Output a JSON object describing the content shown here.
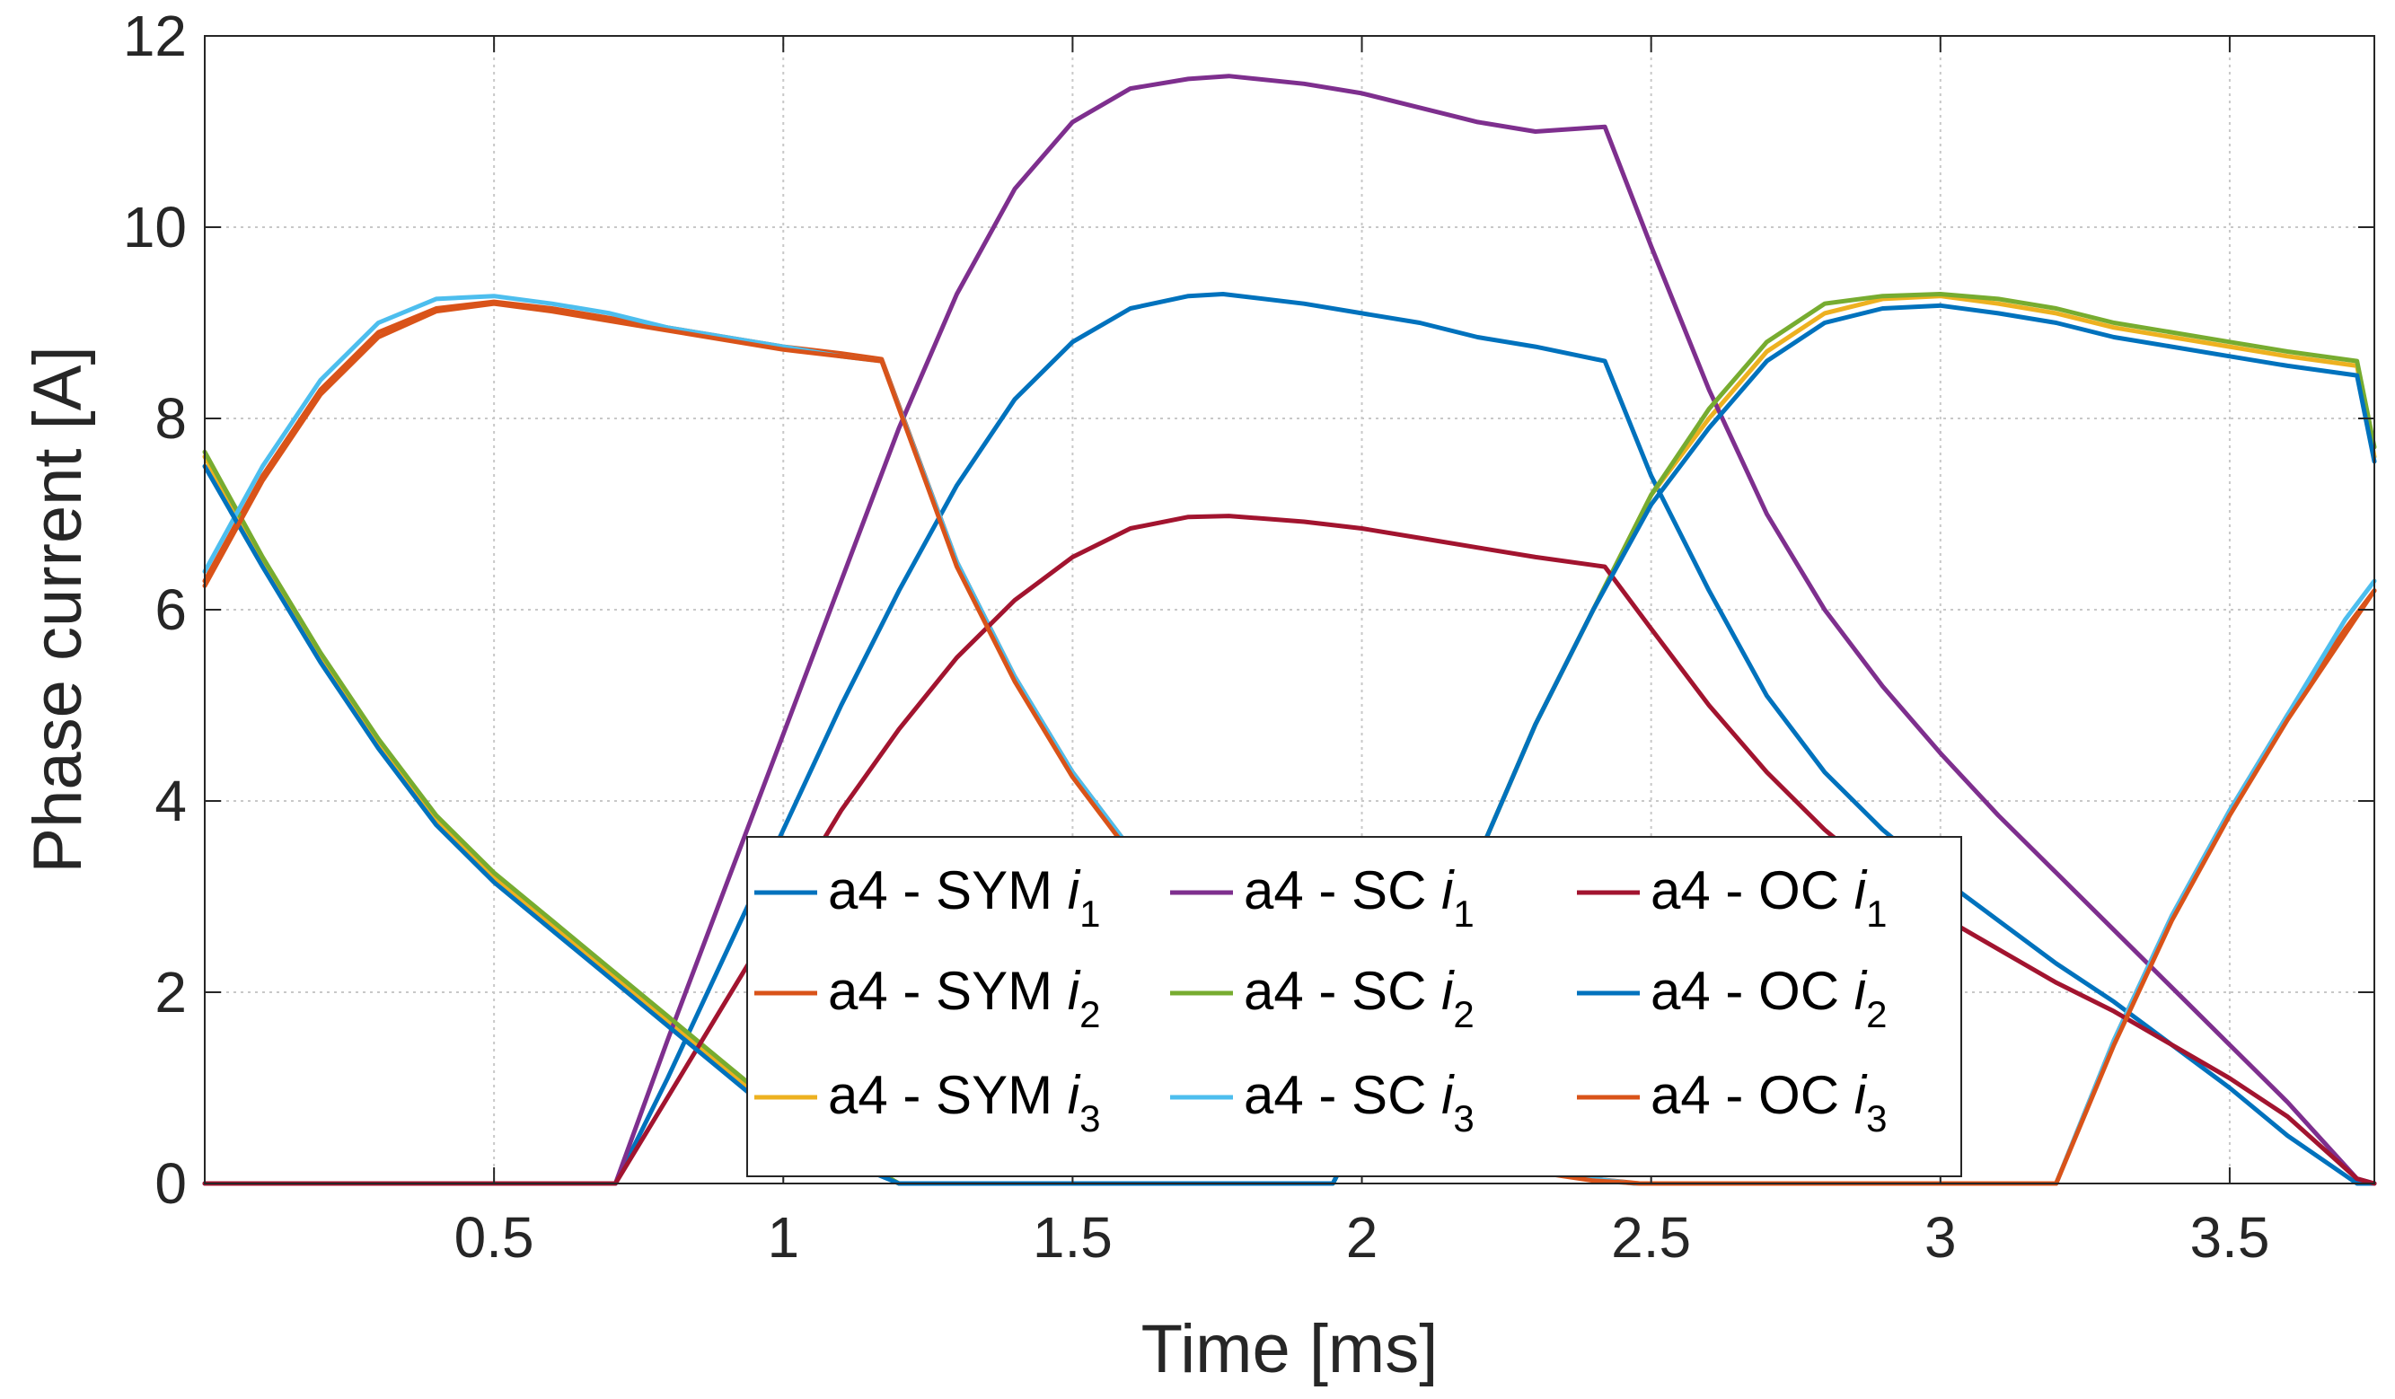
{
  "chart_data": {
    "type": "line",
    "title": "",
    "xlabel": "Time  [ms]",
    "ylabel": "Phase current [A]",
    "xlim": [
      0,
      3.75
    ],
    "ylim": [
      0,
      12
    ],
    "x_ticks": [
      0.5,
      1,
      1.5,
      2,
      2.5,
      3,
      3.5
    ],
    "x_tick_labels": [
      "0.5",
      "1",
      "1.5",
      "2",
      "2.5",
      "3",
      "3.5"
    ],
    "y_ticks": [
      0,
      2,
      4,
      6,
      8,
      10,
      12
    ],
    "y_tick_labels": [
      "0",
      "2",
      "4",
      "6",
      "8",
      "10",
      "12"
    ],
    "grid": true,
    "legend_position": "bottom-center",
    "legend_columns": 3,
    "series": [
      {
        "name": "a4 - SYM i1",
        "label_main": "a4 - SYM ",
        "label_var": "i",
        "label_sub": "1",
        "color": "#0072BD",
        "x": [
          0,
          0.71,
          0.8,
          0.9,
          1.0,
          1.1,
          1.2,
          1.3,
          1.4,
          1.5,
          1.6,
          1.7,
          1.76,
          1.9,
          2.0,
          2.1,
          2.2,
          2.3,
          2.42,
          2.5,
          2.6,
          2.7,
          2.8,
          2.9,
          3.0,
          3.1,
          3.2,
          3.3,
          3.4,
          3.5,
          3.6,
          3.72,
          3.75
        ],
        "y": [
          0,
          0,
          1.1,
          2.4,
          3.7,
          5.0,
          6.2,
          7.3,
          8.2,
          8.8,
          9.15,
          9.28,
          9.3,
          9.2,
          9.1,
          9.0,
          8.85,
          8.75,
          8.6,
          7.4,
          6.2,
          5.1,
          4.3,
          3.7,
          3.2,
          2.75,
          2.3,
          1.9,
          1.45,
          1.0,
          0.5,
          0,
          0
        ]
      },
      {
        "name": "a4 - SYM i2",
        "label_main": "a4 - SYM ",
        "label_var": "i",
        "label_sub": "2",
        "color": "#D95319",
        "x": [
          0,
          0.1,
          0.2,
          0.3,
          0.4,
          0.5,
          0.6,
          0.7,
          0.8,
          0.9,
          1.0,
          1.1,
          1.17,
          1.3,
          1.4,
          1.5,
          1.6,
          1.7,
          1.8,
          1.9,
          2.0,
          2.1,
          2.2,
          2.3,
          2.4,
          2.48,
          3.2,
          3.3,
          3.4,
          3.5,
          3.6,
          3.7,
          3.75
        ],
        "y": [
          6.3,
          7.4,
          8.3,
          8.9,
          9.15,
          9.22,
          9.15,
          9.05,
          8.95,
          8.85,
          8.75,
          8.68,
          8.62,
          6.5,
          5.3,
          4.3,
          3.5,
          2.8,
          2.2,
          1.6,
          1.1,
          0.7,
          0.4,
          0.15,
          0.05,
          0,
          0,
          1.5,
          2.8,
          3.9,
          4.9,
          5.8,
          6.2
        ]
      },
      {
        "name": "a4 - SYM i3",
        "label_main": "a4 - SYM ",
        "label_var": "i",
        "label_sub": "3",
        "color": "#EDB120",
        "x": [
          0,
          0.1,
          0.2,
          0.3,
          0.4,
          0.5,
          0.6,
          0.7,
          0.8,
          0.9,
          1.0,
          1.1,
          1.2,
          1.95,
          2.0,
          2.1,
          2.2,
          2.3,
          2.4,
          2.5,
          2.6,
          2.7,
          2.8,
          2.9,
          3.0,
          3.1,
          3.2,
          3.3,
          3.4,
          3.5,
          3.6,
          3.72,
          3.75
        ],
        "y": [
          7.6,
          6.5,
          5.5,
          4.6,
          3.8,
          3.2,
          2.7,
          2.2,
          1.7,
          1.2,
          0.7,
          0.3,
          0,
          0,
          0.6,
          2.0,
          3.4,
          4.8,
          6.0,
          7.2,
          8.0,
          8.7,
          9.1,
          9.25,
          9.28,
          9.2,
          9.1,
          8.95,
          8.85,
          8.75,
          8.65,
          8.55,
          7.6
        ]
      },
      {
        "name": "a4 - SC i1",
        "label_main": "a4 - SC ",
        "label_var": "i",
        "label_sub": "1",
        "color": "#7E2F8E",
        "x": [
          0,
          0.71,
          0.8,
          0.9,
          1.0,
          1.1,
          1.2,
          1.3,
          1.4,
          1.5,
          1.6,
          1.7,
          1.77,
          1.9,
          2.0,
          2.1,
          2.2,
          2.3,
          2.42,
          2.5,
          2.6,
          2.7,
          2.8,
          2.9,
          3.0,
          3.1,
          3.2,
          3.3,
          3.4,
          3.5,
          3.6,
          3.72,
          3.75
        ],
        "y": [
          0,
          0,
          1.5,
          3.1,
          4.7,
          6.3,
          7.9,
          9.3,
          10.4,
          11.1,
          11.45,
          11.55,
          11.58,
          11.5,
          11.4,
          11.25,
          11.1,
          11.0,
          11.05,
          9.8,
          8.3,
          7.0,
          6.0,
          5.2,
          4.5,
          3.85,
          3.25,
          2.65,
          2.05,
          1.45,
          0.85,
          0.05,
          0
        ]
      },
      {
        "name": "a4 - SC i2",
        "label_main": "a4 - SC ",
        "label_var": "i",
        "label_sub": "2",
        "color": "#77AC30",
        "x": [
          0,
          0.1,
          0.2,
          0.3,
          0.4,
          0.5,
          0.6,
          0.7,
          0.8,
          0.9,
          1.0,
          1.1,
          1.2,
          1.95,
          2.0,
          2.1,
          2.2,
          2.3,
          2.4,
          2.5,
          2.6,
          2.7,
          2.8,
          2.9,
          3.0,
          3.1,
          3.2,
          3.3,
          3.4,
          3.5,
          3.6,
          3.72,
          3.75
        ],
        "y": [
          7.65,
          6.55,
          5.55,
          4.65,
          3.85,
          3.25,
          2.75,
          2.25,
          1.75,
          1.25,
          0.75,
          0.35,
          0,
          0,
          0.6,
          2.0,
          3.4,
          4.8,
          6.0,
          7.2,
          8.1,
          8.8,
          9.2,
          9.28,
          9.3,
          9.25,
          9.15,
          9.0,
          8.9,
          8.8,
          8.7,
          8.6,
          7.7
        ]
      },
      {
        "name": "a4 - SC i3",
        "label_main": "a4 - SC ",
        "label_var": "i",
        "label_sub": "3",
        "color": "#4DBEEE",
        "x": [
          0,
          0.1,
          0.2,
          0.3,
          0.4,
          0.5,
          0.6,
          0.7,
          0.8,
          0.9,
          1.0,
          1.1,
          1.17,
          1.3,
          1.4,
          1.5,
          1.6,
          1.7,
          1.8,
          1.9,
          2.0,
          2.1,
          2.2,
          2.3,
          2.4,
          2.47,
          3.2,
          3.3,
          3.4,
          3.5,
          3.6,
          3.7,
          3.75
        ],
        "y": [
          6.4,
          7.5,
          8.4,
          9.0,
          9.25,
          9.28,
          9.2,
          9.1,
          8.95,
          8.85,
          8.75,
          8.65,
          8.6,
          6.5,
          5.3,
          4.3,
          3.5,
          2.8,
          2.2,
          1.6,
          1.1,
          0.7,
          0.4,
          0.15,
          0.05,
          0,
          0,
          1.5,
          2.8,
          3.9,
          4.9,
          5.9,
          6.3
        ]
      },
      {
        "name": "a4 - OC i1",
        "label_main": "a4 - OC ",
        "label_var": "i",
        "label_sub": "1",
        "color": "#A2142F",
        "x": [
          0,
          0.71,
          0.8,
          0.9,
          1.0,
          1.1,
          1.2,
          1.3,
          1.4,
          1.5,
          1.6,
          1.7,
          1.77,
          1.9,
          2.0,
          2.1,
          2.2,
          2.3,
          2.42,
          2.5,
          2.6,
          2.7,
          2.8,
          2.9,
          3.0,
          3.1,
          3.2,
          3.3,
          3.4,
          3.5,
          3.6,
          3.72,
          3.75
        ],
        "y": [
          0,
          0,
          0.9,
          1.9,
          2.9,
          3.9,
          4.75,
          5.5,
          6.1,
          6.55,
          6.85,
          6.97,
          6.98,
          6.92,
          6.85,
          6.75,
          6.65,
          6.55,
          6.45,
          5.8,
          5.0,
          4.3,
          3.7,
          3.2,
          2.8,
          2.45,
          2.1,
          1.8,
          1.45,
          1.1,
          0.7,
          0.05,
          0
        ]
      },
      {
        "name": "a4 - OC i2",
        "label_main": "a4 - OC ",
        "label_var": "i",
        "label_sub": "2",
        "color": "#0072BD",
        "x": [
          0,
          0.1,
          0.2,
          0.3,
          0.4,
          0.5,
          0.6,
          0.7,
          0.8,
          0.9,
          1.0,
          1.1,
          1.2,
          1.95,
          2.0,
          2.1,
          2.2,
          2.3,
          2.4,
          2.5,
          2.6,
          2.7,
          2.8,
          2.9,
          3.0,
          3.1,
          3.2,
          3.3,
          3.4,
          3.5,
          3.6,
          3.72,
          3.75
        ],
        "y": [
          7.5,
          6.45,
          5.45,
          4.55,
          3.75,
          3.15,
          2.65,
          2.15,
          1.65,
          1.15,
          0.65,
          0.25,
          0,
          0,
          0.6,
          2.0,
          3.4,
          4.8,
          6.0,
          7.1,
          7.9,
          8.6,
          9.0,
          9.15,
          9.18,
          9.1,
          9.0,
          8.85,
          8.75,
          8.65,
          8.55,
          8.45,
          7.55
        ]
      },
      {
        "name": "a4 - OC i3",
        "label_main": "a4 - OC ",
        "label_var": "i",
        "label_sub": "3",
        "color": "#D95319",
        "x": [
          0,
          0.1,
          0.2,
          0.3,
          0.4,
          0.5,
          0.6,
          0.7,
          0.8,
          0.9,
          1.0,
          1.1,
          1.17,
          1.3,
          1.4,
          1.5,
          1.6,
          1.7,
          1.8,
          1.9,
          2.0,
          2.1,
          2.2,
          2.3,
          2.4,
          2.48,
          3.2,
          3.3,
          3.4,
          3.5,
          3.6,
          3.7,
          3.75
        ],
        "y": [
          6.25,
          7.35,
          8.25,
          8.85,
          9.12,
          9.2,
          9.12,
          9.02,
          8.92,
          8.82,
          8.72,
          8.65,
          8.6,
          6.45,
          5.25,
          4.25,
          3.45,
          2.75,
          2.15,
          1.55,
          1.05,
          0.65,
          0.35,
          0.12,
          0.03,
          0,
          0,
          1.45,
          2.75,
          3.85,
          4.85,
          5.75,
          6.2
        ]
      }
    ]
  }
}
